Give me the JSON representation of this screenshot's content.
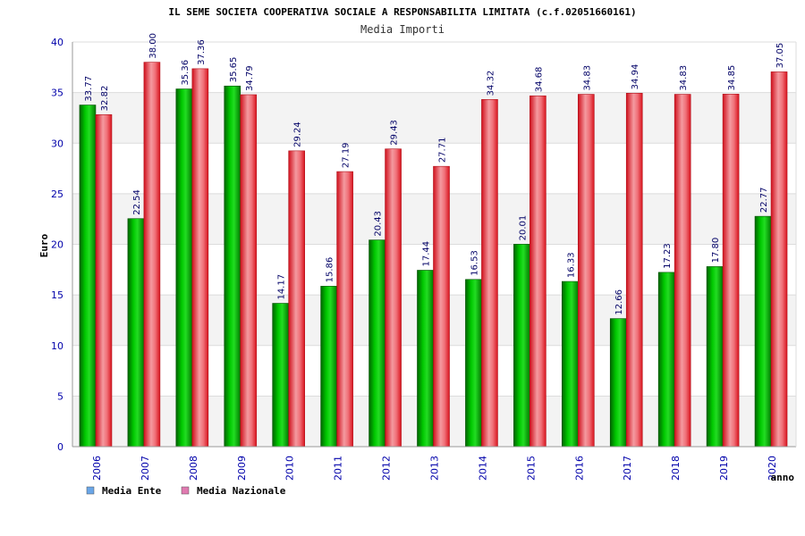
{
  "chart_data": {
    "type": "bar",
    "title": "IL SEME SOCIETA COOPERATIVA SOCIALE A RESPONSABILITA LIMITATA (c.f.02051660161)",
    "subtitle": "Media Importi",
    "xlabel": "anno",
    "ylabel": "Euro",
    "ylim": [
      0,
      40
    ],
    "yticks": [
      0,
      5,
      10,
      15,
      20,
      25,
      30,
      35,
      40
    ],
    "grid": true,
    "legend_position": "bottom-left",
    "categories": [
      "2006",
      "2007",
      "2008",
      "2009",
      "2010",
      "2011",
      "2012",
      "2013",
      "2014",
      "2015",
      "2016",
      "2017",
      "2018",
      "2019",
      "2020"
    ],
    "series": [
      {
        "name": "Media Ente",
        "color": "#00a000",
        "legend_color": "#6aa6e8",
        "values": [
          33.77,
          22.54,
          35.36,
          35.65,
          14.17,
          15.86,
          20.43,
          17.44,
          16.53,
          20.01,
          16.33,
          12.66,
          17.23,
          17.8,
          22.77
        ],
        "labels": [
          "33.77",
          "22.54",
          "35.36",
          "35.65",
          "14.17",
          "15.86",
          "20.43",
          "17.44",
          "16.53",
          "20.01",
          "16.33",
          "12.66",
          "17.23",
          "17.80",
          "22.77"
        ]
      },
      {
        "name": "Media Nazionale",
        "color": "#e8202a",
        "legend_color": "#e07ab0",
        "values": [
          32.82,
          38.0,
          37.36,
          34.79,
          29.24,
          27.19,
          29.43,
          27.71,
          34.32,
          34.68,
          34.83,
          34.94,
          34.83,
          34.85,
          37.05
        ],
        "labels": [
          "32.82",
          "38.00",
          "37.36",
          "34.79",
          "29.24",
          "27.19",
          "29.43",
          "27.71",
          "34.32",
          "34.68",
          "34.83",
          "34.94",
          "34.83",
          "34.85",
          "37.05"
        ]
      }
    ]
  }
}
